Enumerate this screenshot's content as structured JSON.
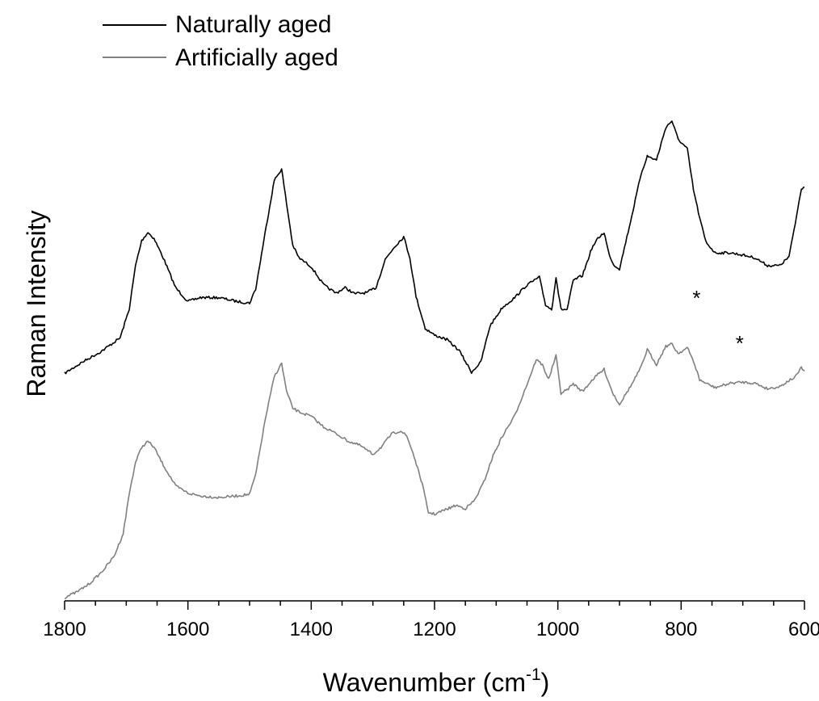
{
  "chart_data": {
    "type": "line",
    "title": "",
    "xlabel_main": "Wavenumber (cm",
    "xlabel_sup": "-1",
    "xlabel_close": ")",
    "ylabel": "Raman Intensity",
    "xlim": [
      1800,
      600
    ],
    "ylim": [
      0,
      1
    ],
    "x_reversed": true,
    "y_ticks_labeled": false,
    "grid": false,
    "legend_position": "top-left",
    "xticks": [
      "1800",
      "1600",
      "1400",
      "1200",
      "1000",
      "800",
      "600"
    ],
    "series": [
      {
        "name": "Naturally aged",
        "color": "#000000",
        "x": [
          1800,
          1770,
          1740,
          1710,
          1695,
          1685,
          1675,
          1665,
          1655,
          1640,
          1620,
          1600,
          1580,
          1550,
          1520,
          1500,
          1490,
          1475,
          1460,
          1448,
          1440,
          1430,
          1420,
          1400,
          1380,
          1360,
          1345,
          1330,
          1310,
          1295,
          1280,
          1265,
          1250,
          1240,
          1230,
          1215,
          1200,
          1180,
          1160,
          1140,
          1125,
          1110,
          1090,
          1070,
          1050,
          1030,
          1020,
          1010,
          1003,
          995,
          985,
          975,
          960,
          945,
          935,
          925,
          918,
          910,
          900,
          880,
          865,
          855,
          840,
          825,
          815,
          805,
          790,
          780,
          770,
          760,
          745,
          720,
          700,
          680,
          660,
          640,
          625,
          615,
          605,
          600
        ],
        "y": [
          0.412,
          0.433,
          0.452,
          0.476,
          0.529,
          0.607,
          0.652,
          0.667,
          0.656,
          0.621,
          0.567,
          0.542,
          0.549,
          0.549,
          0.542,
          0.539,
          0.565,
          0.665,
          0.761,
          0.782,
          0.719,
          0.644,
          0.621,
          0.605,
          0.572,
          0.557,
          0.567,
          0.556,
          0.558,
          0.567,
          0.618,
          0.641,
          0.659,
          0.621,
          0.551,
          0.493,
          0.481,
          0.473,
          0.453,
          0.414,
          0.432,
          0.498,
          0.531,
          0.549,
          0.572,
          0.586,
          0.536,
          0.527,
          0.586,
          0.528,
          0.527,
          0.58,
          0.589,
          0.638,
          0.656,
          0.667,
          0.632,
          0.609,
          0.601,
          0.697,
          0.773,
          0.805,
          0.798,
          0.857,
          0.869,
          0.836,
          0.818,
          0.744,
          0.693,
          0.65,
          0.63,
          0.63,
          0.626,
          0.621,
          0.607,
          0.607,
          0.623,
          0.683,
          0.747,
          0.749
        ]
      },
      {
        "name": "Artificially aged",
        "color": "#808080",
        "x": [
          1800,
          1780,
          1760,
          1740,
          1720,
          1705,
          1695,
          1685,
          1675,
          1665,
          1655,
          1640,
          1620,
          1600,
          1580,
          1550,
          1520,
          1500,
          1490,
          1475,
          1460,
          1448,
          1440,
          1430,
          1420,
          1400,
          1380,
          1360,
          1340,
          1320,
          1300,
          1285,
          1270,
          1255,
          1245,
          1235,
          1220,
          1210,
          1200,
          1180,
          1165,
          1150,
          1135,
          1120,
          1105,
          1090,
          1070,
          1050,
          1035,
          1025,
          1015,
          1003,
          995,
          985,
          975,
          960,
          945,
          935,
          925,
          918,
          910,
          900,
          880,
          865,
          855,
          840,
          825,
          815,
          805,
          790,
          780,
          770,
          760,
          745,
          720,
          700,
          680,
          660,
          640,
          625,
          615,
          605,
          600
        ],
        "y": [
          0.006,
          0.016,
          0.031,
          0.052,
          0.08,
          0.122,
          0.195,
          0.251,
          0.278,
          0.289,
          0.278,
          0.246,
          0.208,
          0.195,
          0.19,
          0.187,
          0.19,
          0.193,
          0.229,
          0.326,
          0.406,
          0.43,
          0.379,
          0.349,
          0.342,
          0.334,
          0.315,
          0.303,
          0.289,
          0.281,
          0.265,
          0.28,
          0.302,
          0.308,
          0.298,
          0.268,
          0.212,
          0.16,
          0.157,
          0.166,
          0.173,
          0.167,
          0.182,
          0.215,
          0.263,
          0.298,
          0.335,
          0.392,
          0.437,
          0.427,
          0.401,
          0.444,
          0.376,
          0.382,
          0.393,
          0.379,
          0.399,
          0.41,
          0.419,
          0.397,
          0.374,
          0.356,
          0.392,
          0.423,
          0.455,
          0.428,
          0.461,
          0.465,
          0.448,
          0.458,
          0.434,
          0.4,
          0.394,
          0.386,
          0.394,
          0.396,
          0.394,
          0.384,
          0.388,
          0.399,
          0.405,
          0.422,
          0.416
        ]
      }
    ],
    "annotations": [
      {
        "text": "*",
        "x": 775,
        "y": 0.535
      },
      {
        "text": "*",
        "x": 705,
        "y": 0.453
      }
    ]
  }
}
